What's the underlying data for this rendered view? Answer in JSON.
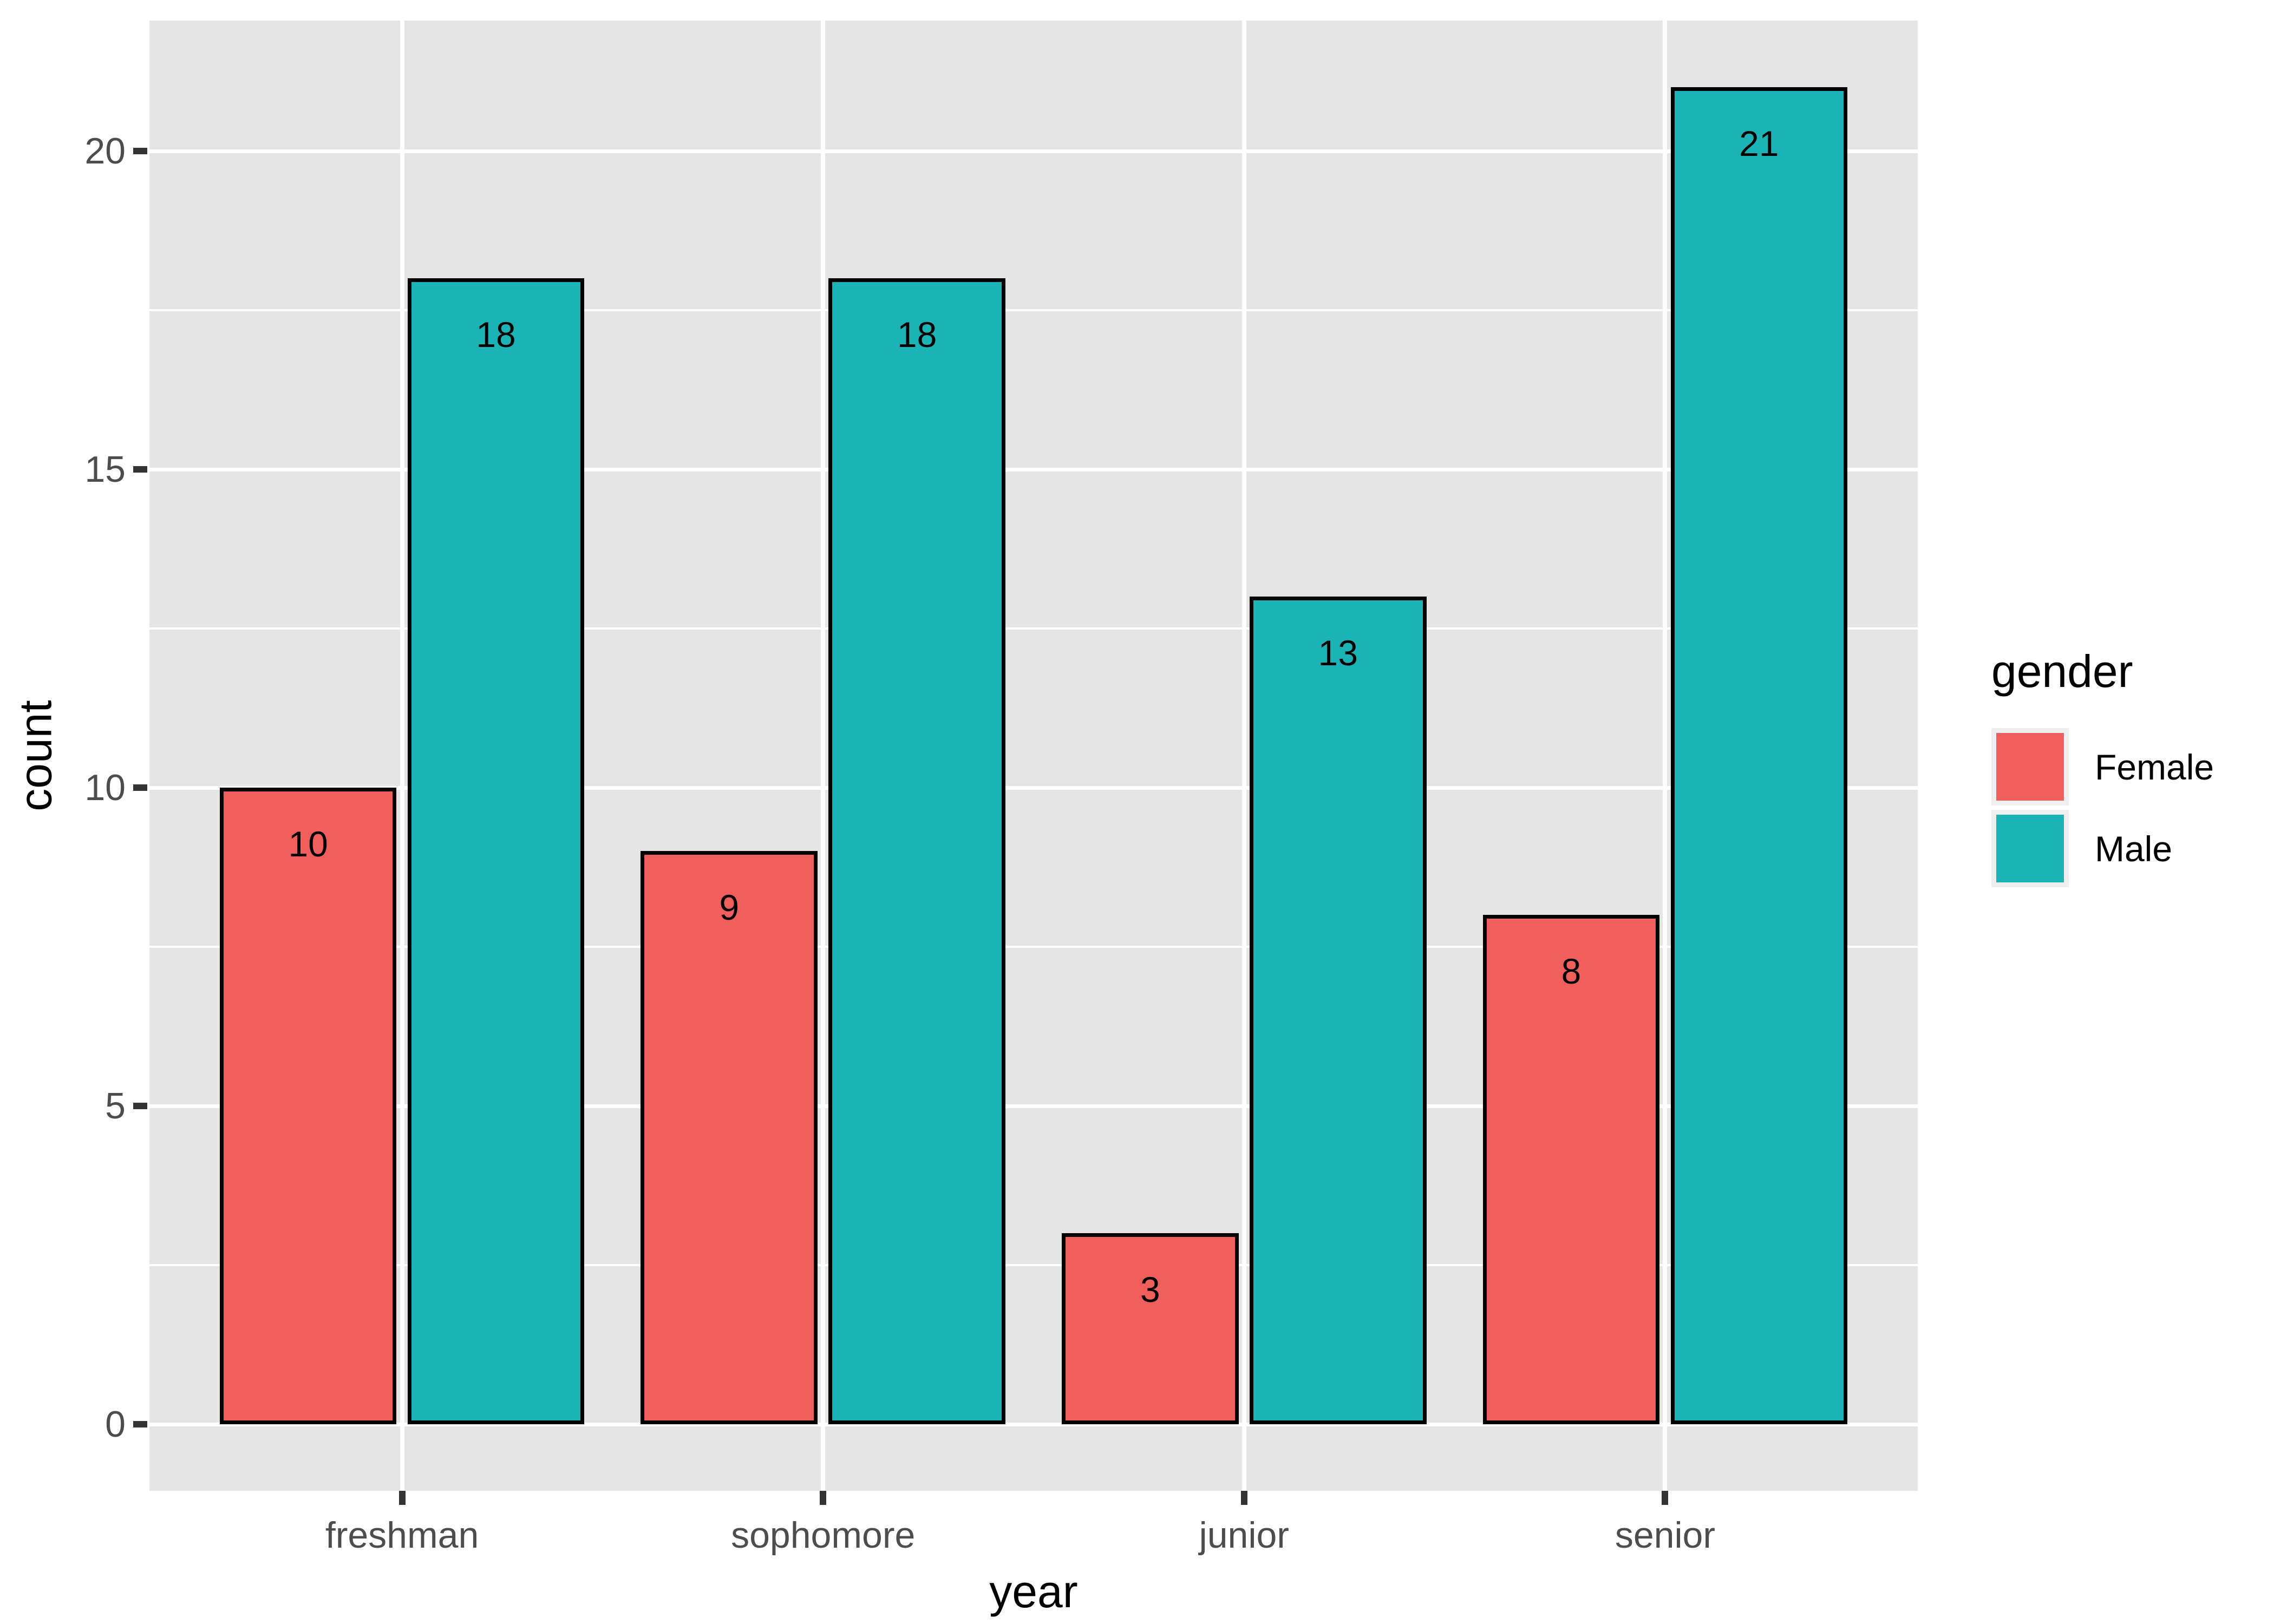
{
  "chart_data": {
    "type": "bar",
    "categories": [
      "freshman",
      "sophomore",
      "junior",
      "senior"
    ],
    "series": [
      {
        "name": "Female",
        "color": "#F15F5C",
        "values": [
          10,
          9,
          3,
          8
        ]
      },
      {
        "name": "Male",
        "color": "#1AB3B6",
        "values": [
          18,
          18,
          13,
          21
        ]
      }
    ],
    "title": "",
    "xlabel": "year",
    "ylabel": "count",
    "yticks": [
      0,
      5,
      10,
      15,
      20
    ],
    "yminor": [
      2.5,
      7.5,
      12.5,
      17.5
    ],
    "ylim": [
      -1.05,
      22.05
    ],
    "bar_value_labels": true,
    "legend": {
      "title": "gender",
      "position": "right"
    },
    "layout": {
      "panel_background": "#E5E5E5",
      "grid_color": "#FFFFFF",
      "tick_label_color": "#4D4D4D",
      "tick_mark_color": "#333333",
      "bar_border_color": "#000000",
      "grid": "on"
    }
  }
}
